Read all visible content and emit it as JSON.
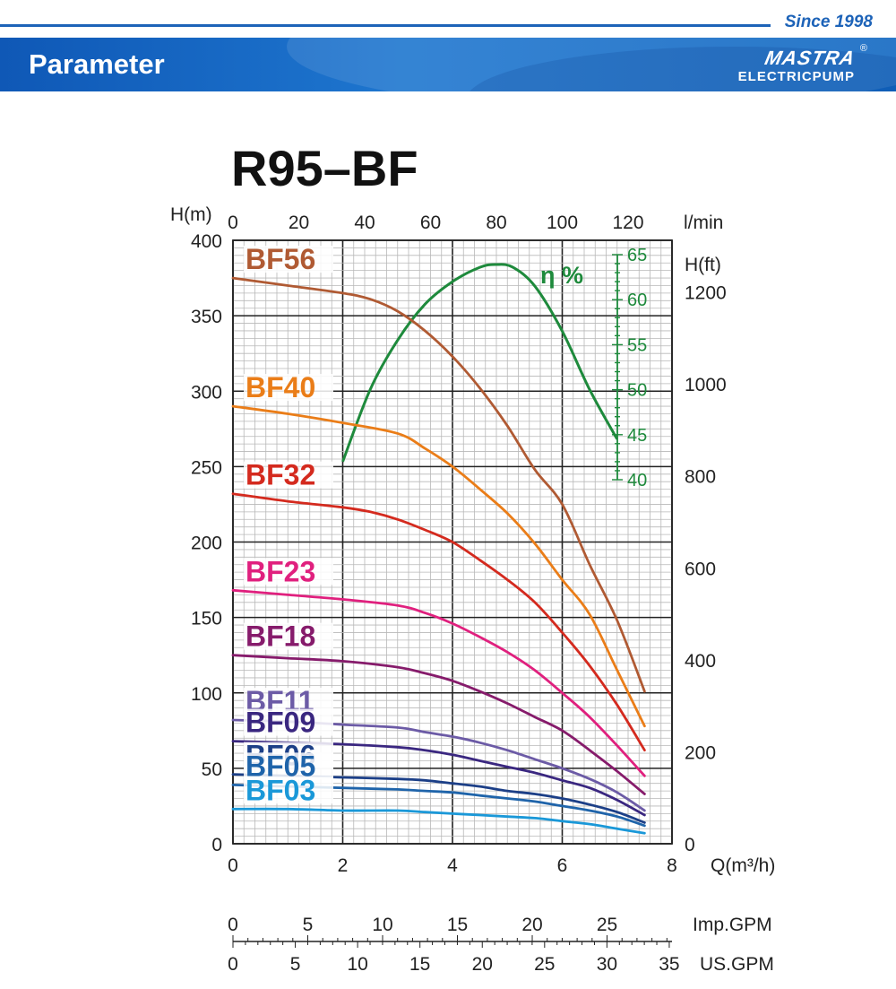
{
  "header": {
    "since": "Since 1998",
    "title": "Parameter",
    "logo_mark": "MASTRA",
    "logo_text": "ELECTRICPUMP",
    "logo_reg": "®"
  },
  "colors": {
    "brand_blue": "#1d63b8",
    "efficiency_green": "#1e8a3c"
  },
  "chart_data": {
    "type": "line",
    "title": "R95–BF",
    "x_primary": {
      "label": "Q(m³/h)",
      "range": [
        0,
        8
      ],
      "ticks": [
        0,
        2,
        4,
        6,
        8
      ]
    },
    "x_top": {
      "label": "l/min",
      "ticks": [
        "0",
        "20",
        "40",
        "60",
        "80",
        "100",
        "120"
      ],
      "values": [
        0,
        20,
        40,
        60,
        80,
        100,
        120
      ]
    },
    "x_imp_gpm": {
      "label": "Imp.GPM",
      "ticks": [
        "0",
        "5",
        "10",
        "15",
        "20",
        "25"
      ],
      "values": [
        0,
        5,
        10,
        15,
        20,
        25
      ],
      "max": 29.34
    },
    "x_us_gpm": {
      "label": "US.GPM",
      "ticks": [
        "0",
        "5",
        "10",
        "15",
        "20",
        "25",
        "30",
        "35"
      ],
      "values": [
        0,
        5,
        10,
        15,
        20,
        25,
        30,
        35
      ],
      "max": 35.22
    },
    "y_left": {
      "label": "H(m)",
      "range": [
        0,
        400
      ],
      "ticks": [
        0,
        50,
        100,
        150,
        200,
        250,
        300,
        350,
        400
      ]
    },
    "y_right": {
      "label": "H(ft)",
      "ticks": [
        "0",
        "200",
        "400",
        "600",
        "800",
        "1000",
        "1200"
      ],
      "values": [
        0,
        200,
        400,
        600,
        800,
        1000,
        1200
      ]
    },
    "efficiency_axis": {
      "label": "η %",
      "ticks": [
        "40",
        "45",
        "50",
        "55",
        "60",
        "65"
      ],
      "values": [
        40,
        45,
        50,
        55,
        60,
        65
      ],
      "range": [
        40,
        65
      ]
    },
    "grid": true,
    "series": [
      {
        "name": "BF56",
        "color": "#b05a33",
        "x": [
          0,
          1,
          2,
          2.5,
          3,
          3.5,
          4,
          4.5,
          5,
          5.5,
          6,
          6.5,
          7,
          7.5
        ],
        "y": [
          375,
          370,
          365,
          361,
          353,
          340,
          323,
          302,
          277,
          248,
          225,
          185,
          148,
          101
        ]
      },
      {
        "name": "BF40",
        "color": "#ea7d18",
        "x": [
          0,
          1,
          2,
          3,
          3.5,
          4,
          4.5,
          5,
          5.5,
          6,
          6.5,
          7,
          7.5
        ],
        "y": [
          290,
          285,
          279,
          272,
          262,
          250,
          235,
          219,
          199,
          175,
          152,
          115,
          78
        ]
      },
      {
        "name": "BF32",
        "color": "#d42a1e",
        "x": [
          0,
          1,
          2,
          2.5,
          3,
          3.5,
          4,
          4.5,
          5,
          5.5,
          6,
          6.5,
          7,
          7.5
        ],
        "y": [
          232,
          227,
          223,
          220,
          215,
          208,
          200,
          188,
          175,
          160,
          140,
          118,
          92,
          62
        ]
      },
      {
        "name": "BF23",
        "color": "#e0207e",
        "x": [
          0,
          1,
          2,
          3,
          3.5,
          4,
          4.5,
          5,
          5.5,
          6,
          6.5,
          7,
          7.5
        ],
        "y": [
          168,
          165,
          162,
          158,
          153,
          146,
          137,
          127,
          115,
          100,
          84,
          65,
          45
        ]
      },
      {
        "name": "BF18",
        "color": "#861b6b",
        "x": [
          0,
          1,
          2,
          3,
          3.5,
          4,
          4.5,
          5,
          5.5,
          6,
          6.5,
          7,
          7.5
        ],
        "y": [
          125,
          123,
          121,
          117,
          113,
          108,
          101,
          93,
          84,
          75,
          62,
          48,
          33
        ]
      },
      {
        "name": "BF11",
        "color": "#6c5ba6",
        "x": [
          0,
          1,
          2,
          3,
          3.5,
          4,
          4.5,
          5,
          5.5,
          6,
          6.5,
          7,
          7.5
        ],
        "y": [
          82,
          81,
          79,
          77,
          74,
          71,
          67,
          62,
          56,
          50,
          43,
          34,
          22
        ]
      },
      {
        "name": "BF09",
        "color": "#3a2780",
        "x": [
          0,
          1,
          2,
          3,
          3.5,
          4,
          4.5,
          5,
          5.5,
          6,
          6.5,
          7,
          7.5
        ],
        "y": [
          68,
          67,
          66,
          64,
          62,
          59,
          55,
          51,
          47,
          42,
          37,
          29,
          19
        ]
      },
      {
        "name": "BF06",
        "color": "#1c3f87",
        "x": [
          0,
          1,
          2,
          3,
          3.5,
          4,
          4.5,
          5,
          5.5,
          6,
          6.5,
          7,
          7.5
        ],
        "y": [
          46,
          45,
          44,
          43,
          42,
          40,
          38,
          35,
          33,
          30,
          26,
          21,
          14
        ]
      },
      {
        "name": "BF05",
        "color": "#1f64aa",
        "x": [
          0,
          1,
          2,
          3,
          3.5,
          4,
          4.5,
          5,
          5.5,
          6,
          6.5,
          7,
          7.5
        ],
        "y": [
          39,
          38,
          37,
          36,
          35,
          34,
          32,
          30,
          28,
          25,
          22,
          18,
          12
        ]
      },
      {
        "name": "BF03",
        "color": "#1a98d8",
        "x": [
          0,
          1,
          2,
          3,
          3.5,
          4,
          4.5,
          5,
          5.5,
          6,
          6.5,
          7,
          7.5
        ],
        "y": [
          23,
          23,
          22,
          22,
          21,
          20,
          19,
          18,
          17,
          15,
          13,
          10,
          7
        ]
      }
    ],
    "efficiency": {
      "label": "η %",
      "color": "#1e8a3c",
      "x": [
        2,
        2.5,
        3,
        3.5,
        4,
        4.5,
        4.8,
        5.1,
        5.5,
        6,
        6.5,
        7
      ],
      "y": [
        42.0,
        50.0,
        55.5,
        59.5,
        62.0,
        63.6,
        63.9,
        63.6,
        61.5,
        56.5,
        50.0,
        44.5
      ]
    }
  }
}
